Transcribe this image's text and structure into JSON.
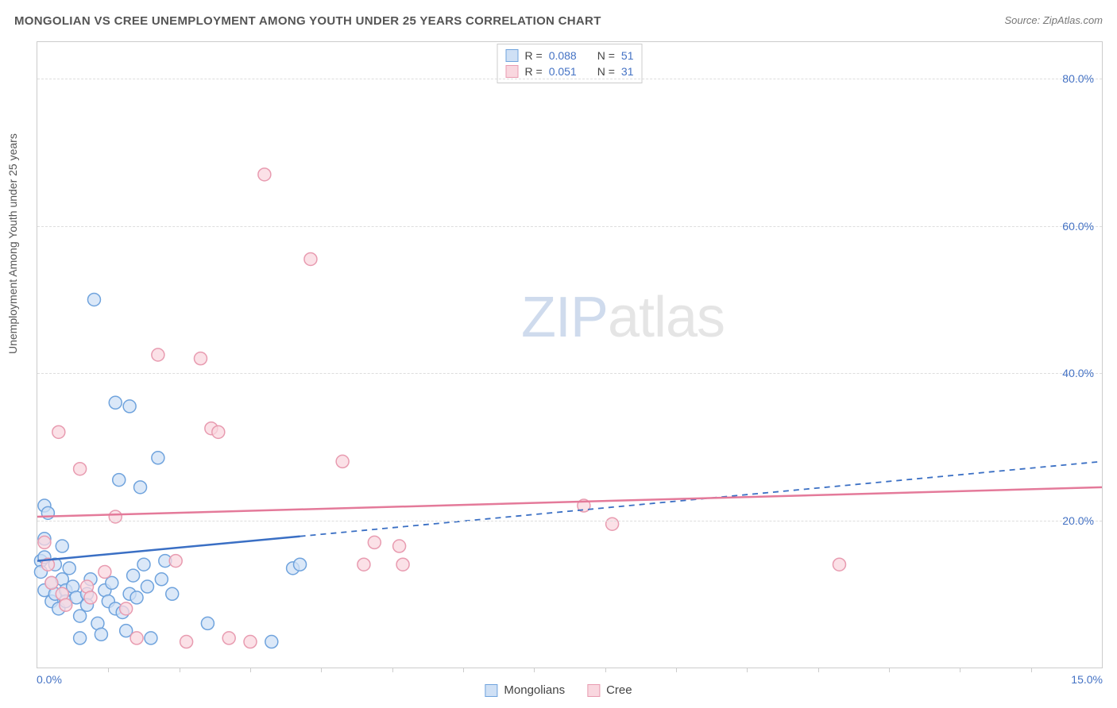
{
  "header": {
    "title": "MONGOLIAN VS CREE UNEMPLOYMENT AMONG YOUTH UNDER 25 YEARS CORRELATION CHART",
    "source": "Source: ZipAtlas.com"
  },
  "chart": {
    "type": "scatter",
    "ylabel": "Unemployment Among Youth under 25 years",
    "xlim": [
      0,
      15
    ],
    "ylim": [
      0,
      85
    ],
    "ytick_step": 20,
    "xtick_minor": [
      1,
      2,
      3,
      4,
      5,
      6,
      7,
      8,
      9,
      10,
      11,
      12,
      13,
      14
    ],
    "xlabels": {
      "min": "0.0%",
      "max": "15.0%"
    },
    "grid_color": "#dddddd",
    "background_color": "#ffffff",
    "border_color": "#cccccc",
    "marker_radius": 8,
    "marker_stroke_width": 1.5,
    "watermark": {
      "zip": "ZIP",
      "atlas": "atlas"
    },
    "series": [
      {
        "name": "Mongolians",
        "fill": "#cfe0f5",
        "stroke": "#6fa3dd",
        "line_color": "#3a6fc4",
        "r_value": "0.088",
        "n_value": "51",
        "trend": {
          "y_at_x0": 14.5,
          "y_at_xmax": 28.0,
          "solid_until_x": 3.7
        },
        "points": [
          [
            0.05,
            14.5
          ],
          [
            0.05,
            13.0
          ],
          [
            0.1,
            15.0
          ],
          [
            0.1,
            22.0
          ],
          [
            0.1,
            17.5
          ],
          [
            0.1,
            10.5
          ],
          [
            0.15,
            21.0
          ],
          [
            0.2,
            9.0
          ],
          [
            0.2,
            11.5
          ],
          [
            0.25,
            14.0
          ],
          [
            0.25,
            10.0
          ],
          [
            0.3,
            8.0
          ],
          [
            0.35,
            12.0
          ],
          [
            0.35,
            16.5
          ],
          [
            0.4,
            10.5
          ],
          [
            0.4,
            9.0
          ],
          [
            0.45,
            13.5
          ],
          [
            0.5,
            11.0
          ],
          [
            0.55,
            9.5
          ],
          [
            0.6,
            7.0
          ],
          [
            0.6,
            4.0
          ],
          [
            0.7,
            10.0
          ],
          [
            0.7,
            8.5
          ],
          [
            0.75,
            12.0
          ],
          [
            0.8,
            50.0
          ],
          [
            0.85,
            6.0
          ],
          [
            0.9,
            4.5
          ],
          [
            0.95,
            10.5
          ],
          [
            1.0,
            9.0
          ],
          [
            1.05,
            11.5
          ],
          [
            1.1,
            8.0
          ],
          [
            1.1,
            36.0
          ],
          [
            1.15,
            25.5
          ],
          [
            1.2,
            7.5
          ],
          [
            1.25,
            5.0
          ],
          [
            1.3,
            10.0
          ],
          [
            1.3,
            35.5
          ],
          [
            1.35,
            12.5
          ],
          [
            1.4,
            9.5
          ],
          [
            1.45,
            24.5
          ],
          [
            1.5,
            14.0
          ],
          [
            1.55,
            11.0
          ],
          [
            1.6,
            4.0
          ],
          [
            1.7,
            28.5
          ],
          [
            1.75,
            12.0
          ],
          [
            1.8,
            14.5
          ],
          [
            1.9,
            10.0
          ],
          [
            2.4,
            6.0
          ],
          [
            3.3,
            3.5
          ],
          [
            3.6,
            13.5
          ],
          [
            3.7,
            14.0
          ]
        ]
      },
      {
        "name": "Cree",
        "fill": "#f9d7df",
        "stroke": "#e89bb0",
        "line_color": "#e47a9a",
        "r_value": "0.051",
        "n_value": "31",
        "trend": {
          "y_at_x0": 20.5,
          "y_at_xmax": 24.5,
          "solid_until_x": 15
        },
        "points": [
          [
            0.1,
            17.0
          ],
          [
            0.15,
            14.0
          ],
          [
            0.2,
            11.5
          ],
          [
            0.3,
            32.0
          ],
          [
            0.35,
            10.0
          ],
          [
            0.4,
            8.5
          ],
          [
            0.6,
            27.0
          ],
          [
            0.7,
            11.0
          ],
          [
            0.75,
            9.5
          ],
          [
            0.95,
            13.0
          ],
          [
            1.1,
            20.5
          ],
          [
            1.25,
            8.0
          ],
          [
            1.4,
            4.0
          ],
          [
            1.7,
            42.5
          ],
          [
            1.95,
            14.5
          ],
          [
            2.1,
            3.5
          ],
          [
            2.3,
            42.0
          ],
          [
            2.45,
            32.5
          ],
          [
            2.55,
            32.0
          ],
          [
            2.7,
            4.0
          ],
          [
            3.0,
            3.5
          ],
          [
            3.2,
            67.0
          ],
          [
            3.85,
            55.5
          ],
          [
            4.3,
            28.0
          ],
          [
            4.6,
            14.0
          ],
          [
            4.75,
            17.0
          ],
          [
            5.1,
            16.5
          ],
          [
            5.15,
            14.0
          ],
          [
            7.7,
            22.0
          ],
          [
            8.1,
            19.5
          ],
          [
            11.3,
            14.0
          ]
        ]
      }
    ],
    "legend": {
      "items": [
        "Mongolians",
        "Cree"
      ]
    },
    "stats_labels": {
      "r": "R =",
      "n": "N ="
    }
  },
  "colors": {
    "axis_text": "#4472c4",
    "title_text": "#555555"
  }
}
